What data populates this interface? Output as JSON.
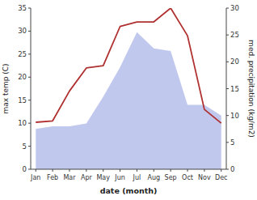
{
  "chart_data": {
    "type": "line",
    "categories": [
      "Jan",
      "Feb",
      "Mar",
      "Apr",
      "May",
      "Jun",
      "Jul",
      "Aug",
      "Sep",
      "Oct",
      "Nov",
      "Dec"
    ],
    "series": [
      {
        "type": "area",
        "axis": "y2",
        "color": "#c0c8ee",
        "values": [
          7.5,
          8.0,
          8.0,
          8.5,
          13.5,
          19.0,
          25.5,
          22.5,
          22.0,
          12.0,
          12.0,
          10.0
        ]
      },
      {
        "type": "line",
        "color": "#b03030",
        "values": [
          10.2,
          10.5,
          17.0,
          22.0,
          22.5,
          31.0,
          32.0,
          32.0,
          35.0,
          29.0,
          13.0,
          10.0
        ]
      }
    ],
    "xlabel": "date (month)",
    "ylabel": "max temp (C)",
    "y2label": "med. precipitation (kg/m2)",
    "ylim": [
      0,
      35
    ],
    "yticks": [
      0,
      5,
      10,
      15,
      20,
      25,
      30,
      35
    ],
    "y2lim": [
      0,
      30
    ],
    "y2ticks": [
      0,
      5,
      10,
      15,
      20,
      25,
      30
    ],
    "grid": false
  }
}
